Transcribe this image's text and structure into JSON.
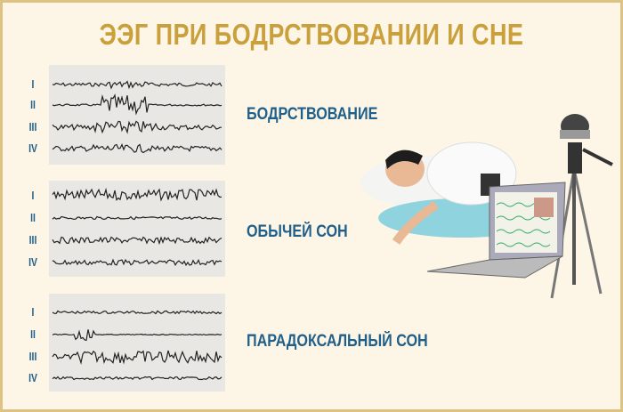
{
  "title": "ЭЭГ ПРИ БОДРСТВОВАНИИ И СНЕ",
  "channels": [
    "I",
    "II",
    "III",
    "IV"
  ],
  "states": [
    {
      "label": "БОДРСТВОВАНИЕ"
    },
    {
      "label": "ОБЫЧЕЙ СОН"
    },
    {
      "label": "ПАРАДОКСАЛЬНЫЙ СОН"
    }
  ],
  "colors": {
    "title": "#c9a03b",
    "labels": "#1f5f8a",
    "background": "#fdf6e6",
    "border": "#dcc383"
  },
  "illustration": "sleeping-person-with-eeg-laptop-and-camera"
}
